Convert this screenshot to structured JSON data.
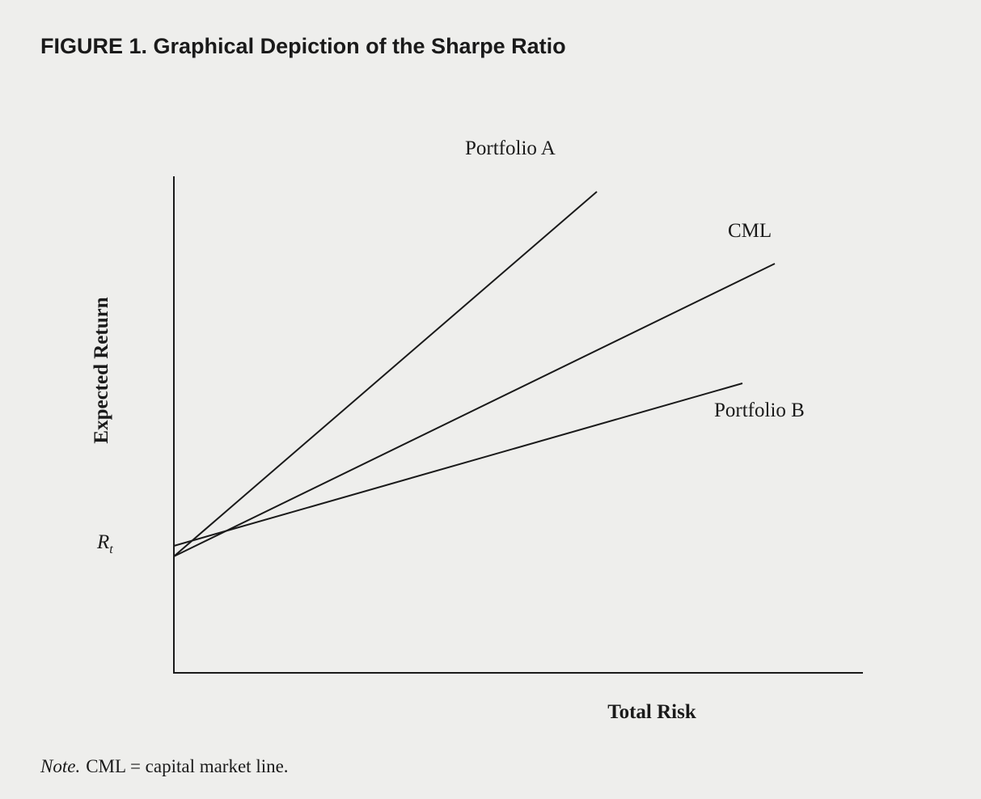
{
  "title": "FIGURE 1. Graphical Depiction of the Sharpe Ratio",
  "axes": {
    "y_label": "Expected Return",
    "x_label": "Total Risk",
    "y_marker": {
      "symbol": "R",
      "subscript": "t"
    }
  },
  "lines": [
    {
      "label": "Portfolio A"
    },
    {
      "label": "CML"
    },
    {
      "label": "Portfolio B"
    }
  ],
  "note": {
    "lead": "Note.",
    "text": "CML = capital market line."
  }
}
